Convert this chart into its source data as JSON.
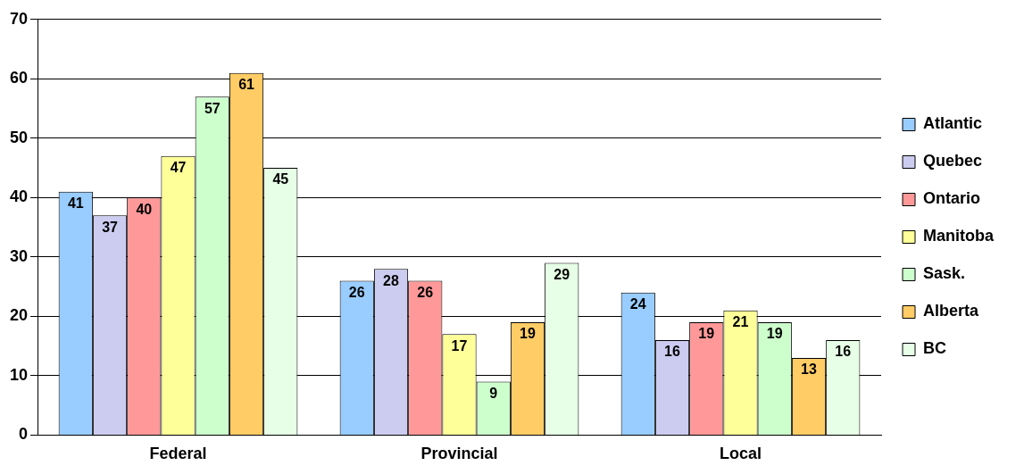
{
  "chart_data": {
    "type": "bar",
    "categories": [
      "Federal",
      "Provincial",
      "Local"
    ],
    "series": [
      {
        "name": "Atlantic",
        "color": "#99ccff",
        "values": [
          41,
          26,
          24
        ]
      },
      {
        "name": "Quebec",
        "color": "#ccccf0",
        "values": [
          37,
          28,
          16
        ]
      },
      {
        "name": "Ontario",
        "color": "#ff9999",
        "values": [
          40,
          26,
          19
        ]
      },
      {
        "name": "Manitoba",
        "color": "#ffff99",
        "values": [
          47,
          17,
          21
        ]
      },
      {
        "name": "Sask.",
        "color": "#ccffcc",
        "values": [
          57,
          9,
          19
        ]
      },
      {
        "name": "Alberta",
        "color": "#ffcc66",
        "values": [
          61,
          19,
          13
        ]
      },
      {
        "name": "BC",
        "color": "#e6ffe6",
        "values": [
          45,
          29,
          16
        ]
      }
    ],
    "ylim": [
      0,
      70
    ],
    "yticks": [
      0,
      10,
      20,
      30,
      40,
      50,
      60,
      70
    ],
    "grid": "y",
    "legend": "right",
    "data_labels": true
  }
}
